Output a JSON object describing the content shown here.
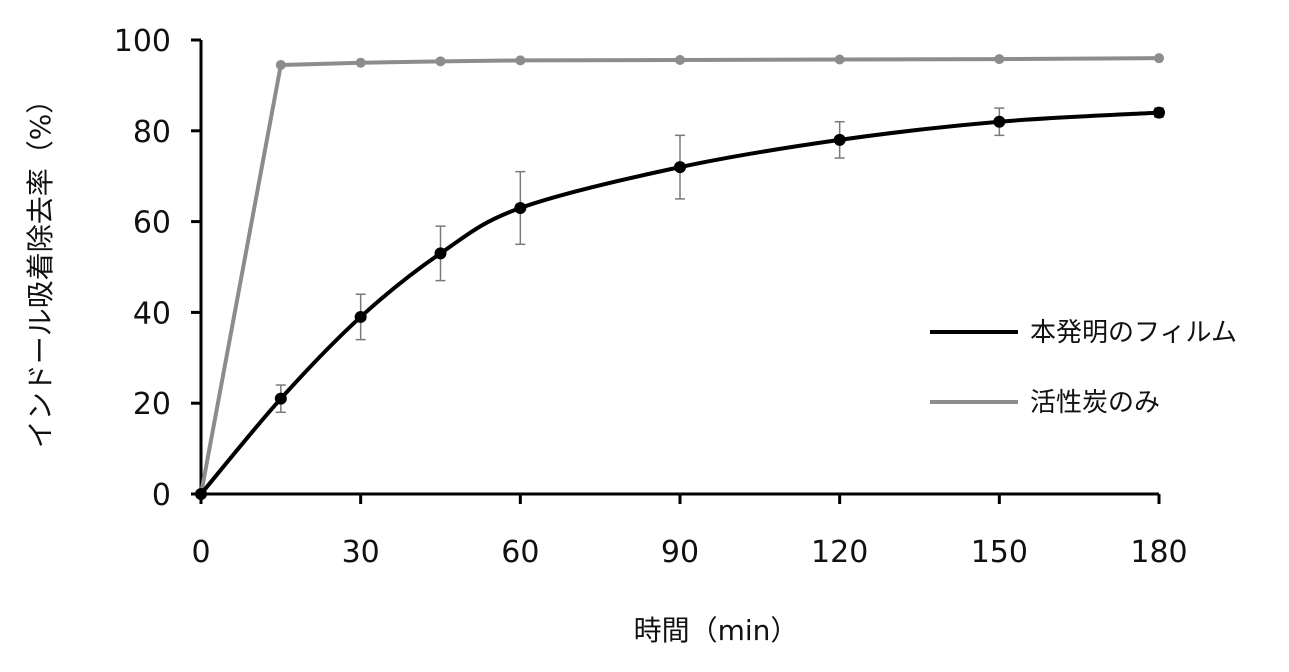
{
  "chart_data": {
    "type": "line",
    "xlabel": "時間（min）",
    "ylabel": "インドール吸着除去率（%）",
    "xlim": [
      0,
      180
    ],
    "ylim": [
      0,
      100
    ],
    "xticks": [
      0,
      30,
      60,
      90,
      120,
      150,
      180
    ],
    "yticks": [
      0,
      20,
      40,
      60,
      80,
      100
    ],
    "grid": false,
    "legend_position": "right",
    "series": [
      {
        "name": "本発明のフィルム",
        "color": "#000000",
        "x": [
          0,
          15,
          30,
          45,
          60,
          90,
          120,
          150,
          180
        ],
        "y": [
          0,
          21,
          39,
          53,
          63,
          72,
          78,
          82,
          84
        ],
        "error": [
          0,
          3,
          5,
          6,
          8,
          7,
          4,
          3,
          1
        ]
      },
      {
        "name": "活性炭のみ",
        "color": "#8c8c8c",
        "x": [
          0,
          15,
          30,
          45,
          60,
          90,
          120,
          150,
          180
        ],
        "y": [
          0,
          94.5,
          95,
          95.3,
          95.5,
          95.6,
          95.7,
          95.8,
          96
        ]
      }
    ]
  }
}
